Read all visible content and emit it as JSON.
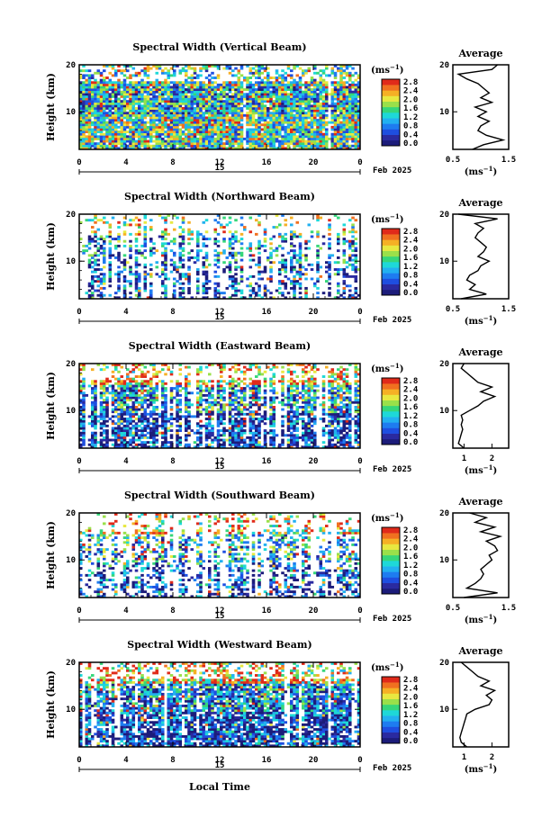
{
  "figure": {
    "ylabel": "Height (km)",
    "xlabel": "Local Time",
    "cbar_unit": "(ms",
    "cbar_unit_sup": "−1",
    "cbar_unit_close": ")",
    "avg_title": "Average",
    "avg_unit": "(ms",
    "avg_unit_close": ")",
    "date_day": "15",
    "date_month": "Feb 2025"
  },
  "colorscale": {
    "ticks": [
      "2.8",
      "2.4",
      "2.0",
      "1.6",
      "1.2",
      "0.8",
      "0.4",
      "0.0"
    ],
    "colors": [
      "#1c1c7a",
      "#2a2aa0",
      "#1e4ee0",
      "#1e7cf0",
      "#22b0f0",
      "#1ed8d8",
      "#36d67a",
      "#9ae04a",
      "#e8e840",
      "#f5b025",
      "#f07020",
      "#e02a1a"
    ]
  },
  "chart_data": [
    {
      "type": "heatmap",
      "title": "Spectral Width (Vertical Beam)",
      "xlabel": "Local Time",
      "ylabel": "Height (km)",
      "xticks": [
        "0",
        "4",
        "8",
        "12",
        "16",
        "20",
        "0"
      ],
      "yticks": [
        "20",
        "10"
      ],
      "xlim": [
        0,
        24
      ],
      "ylim": [
        2,
        20
      ],
      "zlim": [
        0,
        3.0
      ],
      "z_unit": "ms-1",
      "average": {
        "title": "Average",
        "xticks": [
          "0.5",
          "1.5"
        ],
        "xlim": [
          0.5,
          1.5
        ],
        "height": [
          2,
          3,
          4,
          5,
          6,
          7,
          8,
          9,
          10,
          11,
          12,
          13,
          14,
          15,
          16,
          17,
          18,
          19,
          20
        ],
        "value": [
          0.85,
          1.05,
          1.4,
          1.1,
          0.95,
          1.0,
          1.15,
          0.95,
          1.1,
          0.9,
          1.2,
          1.0,
          1.15,
          1.05,
          0.95,
          0.75,
          0.6,
          1.2,
          1.3
        ]
      }
    },
    {
      "type": "heatmap",
      "title": "Spectral Width (Northward Beam)",
      "xlabel": "Local Time",
      "ylabel": "Height (km)",
      "xticks": [
        "0",
        "4",
        "8",
        "12",
        "16",
        "20",
        "0"
      ],
      "yticks": [
        "20",
        "10"
      ],
      "xlim": [
        0,
        24
      ],
      "ylim": [
        2,
        20
      ],
      "zlim": [
        0,
        3.0
      ],
      "z_unit": "ms-1",
      "average": {
        "title": "Average",
        "xticks": [
          "0.5",
          "1.5"
        ],
        "xlim": [
          0.5,
          1.5
        ],
        "height": [
          2,
          3,
          4,
          5,
          6,
          7,
          8,
          9,
          10,
          11,
          12,
          13,
          14,
          15,
          16,
          17,
          18,
          19,
          20
        ],
        "value": [
          0.65,
          1.1,
          0.8,
          0.9,
          0.75,
          0.8,
          0.95,
          1.0,
          1.15,
          0.95,
          1.05,
          1.1,
          1.0,
          0.9,
          0.95,
          1.05,
          0.9,
          1.3,
          0.6
        ]
      }
    },
    {
      "type": "heatmap",
      "title": "Spectral Width (Eastward Beam)",
      "xlabel": "Local Time",
      "ylabel": "Height (km)",
      "xticks": [
        "0",
        "4",
        "8",
        "12",
        "16",
        "20",
        "0"
      ],
      "yticks": [
        "20",
        "10"
      ],
      "xlim": [
        0,
        24
      ],
      "ylim": [
        2,
        20
      ],
      "zlim": [
        0,
        3.0
      ],
      "z_unit": "ms-1",
      "average": {
        "title": "Average",
        "xticks": [
          "1",
          "2"
        ],
        "xlim": [
          0.6,
          2.6
        ],
        "height": [
          2,
          3,
          4,
          5,
          6,
          7,
          8,
          9,
          10,
          11,
          12,
          13,
          14,
          15,
          16,
          17,
          18,
          19,
          20
        ],
        "value": [
          1.0,
          0.8,
          0.85,
          0.9,
          0.95,
          0.9,
          0.95,
          0.9,
          1.2,
          1.5,
          1.7,
          2.1,
          1.6,
          2.0,
          1.5,
          1.3,
          1.1,
          0.9,
          1.0
        ]
      }
    },
    {
      "type": "heatmap",
      "title": "Spectral Width (Southward Beam)",
      "xlabel": "Local Time",
      "ylabel": "Height (km)",
      "xticks": [
        "0",
        "4",
        "8",
        "12",
        "16",
        "20",
        "0"
      ],
      "yticks": [
        "20",
        "10"
      ],
      "xlim": [
        0,
        24
      ],
      "ylim": [
        2,
        20
      ],
      "zlim": [
        0,
        3.0
      ],
      "z_unit": "ms-1",
      "average": {
        "title": "Average",
        "xticks": [
          "0.5",
          "1.5"
        ],
        "xlim": [
          0.5,
          1.5
        ],
        "height": [
          2,
          3,
          4,
          5,
          6,
          7,
          8,
          9,
          10,
          11,
          12,
          13,
          14,
          15,
          16,
          17,
          18,
          19,
          20
        ],
        "value": [
          0.7,
          1.3,
          0.75,
          0.9,
          1.0,
          1.05,
          1.0,
          1.1,
          1.2,
          1.15,
          1.3,
          1.25,
          1.1,
          1.35,
          1.0,
          1.25,
          0.9,
          1.1,
          0.8
        ]
      }
    },
    {
      "type": "heatmap",
      "title": "Spectral Width (Westward Beam)",
      "xlabel": "Local Time",
      "ylabel": "Height (km)",
      "xticks": [
        "0",
        "4",
        "8",
        "12",
        "16",
        "20",
        "0"
      ],
      "yticks": [
        "20",
        "10"
      ],
      "xlim": [
        0,
        24
      ],
      "ylim": [
        2,
        20
      ],
      "zlim": [
        0,
        3.0
      ],
      "z_unit": "ms-1",
      "average": {
        "title": "Average",
        "xticks": [
          "1",
          "2"
        ],
        "xlim": [
          0.6,
          2.6
        ],
        "height": [
          2,
          3,
          4,
          5,
          6,
          7,
          8,
          9,
          10,
          11,
          12,
          13,
          14,
          15,
          16,
          17,
          18,
          19,
          20
        ],
        "value": [
          1.1,
          0.9,
          0.85,
          0.9,
          0.95,
          1.0,
          1.05,
          1.1,
          1.4,
          1.9,
          2.0,
          1.8,
          2.1,
          1.6,
          1.9,
          1.5,
          1.3,
          1.1,
          0.9
        ]
      }
    }
  ]
}
